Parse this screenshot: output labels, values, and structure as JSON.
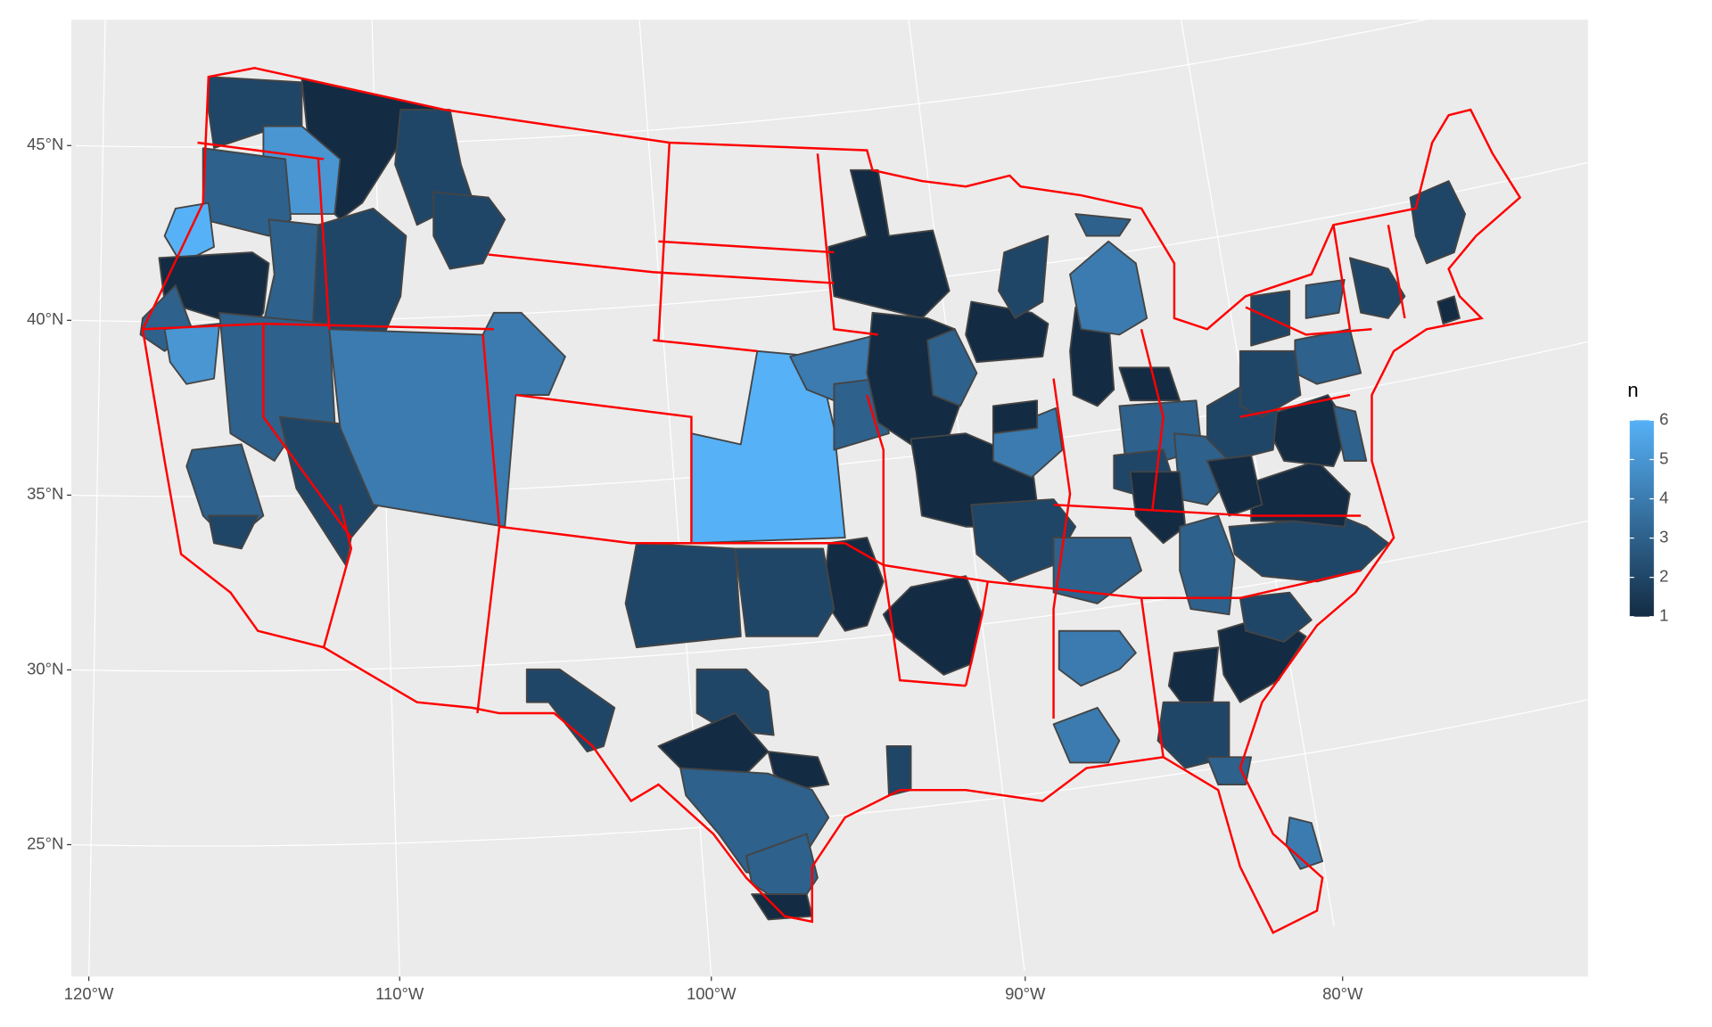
{
  "chart_data": {
    "type": "choropleth",
    "values": [
      2,
      1,
      2,
      5,
      3,
      6,
      1,
      3,
      2,
      2,
      3,
      5,
      3,
      2,
      4,
      3,
      2,
      6,
      4,
      3,
      1,
      1,
      3,
      1,
      1,
      2,
      1,
      4,
      1,
      4,
      3,
      1,
      3,
      2,
      3,
      1,
      2,
      3,
      1,
      1,
      2,
      2,
      4,
      4,
      2,
      2,
      1,
      1,
      3,
      3,
      1,
      2,
      1,
      2,
      3,
      1,
      2,
      2,
      1,
      1,
      2,
      3,
      2,
      2,
      3,
      2,
      2,
      3,
      4,
      1,
      1,
      3
    ],
    "xticks": [
      {
        "value": -120,
        "label": "120°W"
      },
      {
        "value": -110,
        "label": "110°W"
      },
      {
        "value": -100,
        "label": "100°W"
      },
      {
        "value": -90,
        "label": "90°W"
      },
      {
        "value": -80,
        "label": "80°W"
      }
    ],
    "yticks": [
      {
        "value": 25,
        "label": "25°N"
      },
      {
        "value": 30,
        "label": "30°N"
      },
      {
        "value": 35,
        "label": "35°N"
      },
      {
        "value": 40,
        "label": "40°N"
      },
      {
        "value": 45,
        "label": "45°N"
      }
    ],
    "xlim": [
      -121,
      -66
    ],
    "ylim": [
      20,
      50
    ],
    "grid": true,
    "border_color": "#ff0000",
    "region_border_color": "#444444",
    "legend": {
      "title": "n",
      "ticks": [
        1,
        2,
        3,
        4,
        5,
        6
      ],
      "limits": [
        1,
        6
      ],
      "low_color": "#132B43",
      "high_color": "#56B1F7"
    }
  }
}
